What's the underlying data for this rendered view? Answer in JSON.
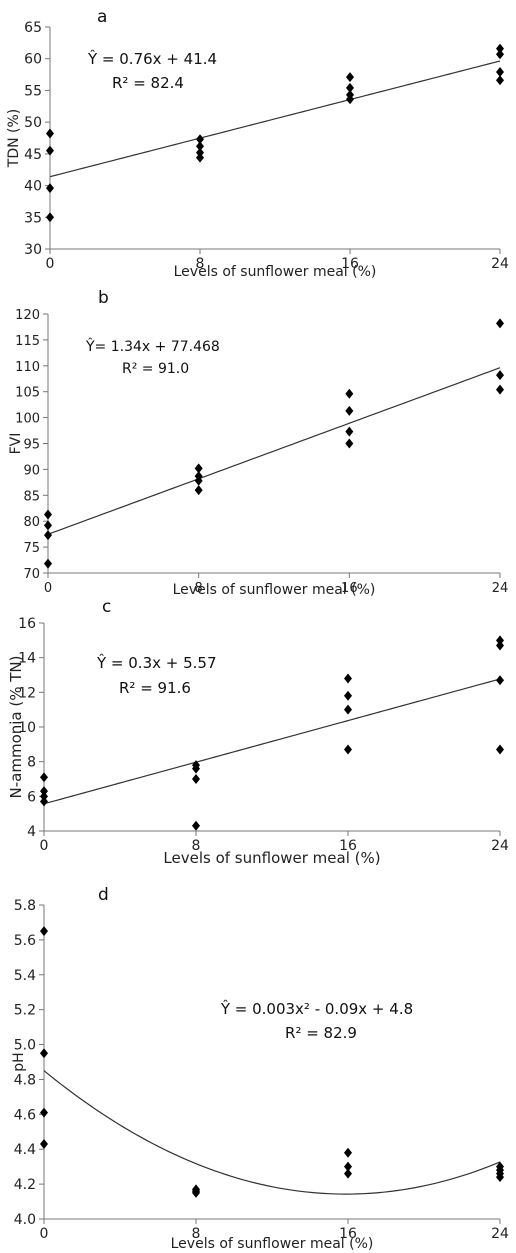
{
  "chart_data": [
    {
      "type": "scatter",
      "panel": "a",
      "xlabel": "Levels of sunflower meal (%)",
      "ylabel": "TDN (%)",
      "x_ticks": [
        0,
        8,
        16,
        24
      ],
      "ylim": [
        30,
        65
      ],
      "y_ticks": [
        30,
        35,
        40,
        45,
        50,
        55,
        60,
        65
      ],
      "points": [
        [
          0,
          35.0
        ],
        [
          0,
          39.6
        ],
        [
          0,
          45.5
        ],
        [
          0,
          48.2
        ],
        [
          8,
          44.4
        ],
        [
          8,
          45.2
        ],
        [
          8,
          46.2
        ],
        [
          8,
          47.3
        ],
        [
          16,
          53.6
        ],
        [
          16,
          54.3
        ],
        [
          16,
          55.4
        ],
        [
          16,
          57.1
        ],
        [
          24,
          56.6
        ],
        [
          24,
          57.9
        ],
        [
          24,
          60.7
        ],
        [
          24,
          61.6
        ]
      ],
      "fit": {
        "kind": "linear",
        "coef": [
          41.4,
          0.76
        ]
      },
      "equation": "Ŷ = 0.76x + 41.4",
      "r2": "R² = 82.4"
    },
    {
      "type": "scatter",
      "panel": "b",
      "xlabel": "Levels of sunflower meal (%)",
      "ylabel": "FVI",
      "x_ticks": [
        0,
        8,
        16,
        24
      ],
      "ylim": [
        70,
        120
      ],
      "y_ticks": [
        70,
        75,
        80,
        85,
        90,
        95,
        100,
        105,
        110,
        115,
        120
      ],
      "points": [
        [
          0,
          71.8
        ],
        [
          0,
          77.3
        ],
        [
          0,
          79.2
        ],
        [
          0,
          81.3
        ],
        [
          8,
          86.0
        ],
        [
          8,
          87.8
        ],
        [
          8,
          88.7
        ],
        [
          8,
          90.2
        ],
        [
          16,
          95.0
        ],
        [
          16,
          97.3
        ],
        [
          16,
          101.3
        ],
        [
          16,
          104.6
        ],
        [
          24,
          105.4
        ],
        [
          24,
          108.2
        ],
        [
          24,
          118.2
        ]
      ],
      "fit": {
        "kind": "linear",
        "coef": [
          77.468,
          1.34
        ]
      },
      "equation": "Ŷ= 1.34x + 77.468",
      "r2": "R² = 91.0"
    },
    {
      "type": "scatter",
      "panel": "c",
      "xlabel": "Levels of sunflower meal (%)",
      "ylabel": "N-ammonia  (% TN)",
      "x_ticks": [
        0,
        8,
        16,
        24
      ],
      "ylim": [
        4,
        16
      ],
      "y_ticks": [
        4,
        6,
        8,
        10,
        12,
        14,
        16
      ],
      "points": [
        [
          0,
          5.7
        ],
        [
          0,
          6.0
        ],
        [
          0,
          6.3
        ],
        [
          0,
          7.1
        ],
        [
          8,
          4.3
        ],
        [
          8,
          7.0
        ],
        [
          8,
          7.6
        ],
        [
          8,
          7.8
        ],
        [
          16,
          8.7
        ],
        [
          16,
          11.0
        ],
        [
          16,
          11.8
        ],
        [
          16,
          12.8
        ],
        [
          24,
          8.7
        ],
        [
          24,
          12.7
        ],
        [
          24,
          14.7
        ],
        [
          24,
          15.0
        ]
      ],
      "fit": {
        "kind": "linear",
        "coef": [
          5.57,
          0.3
        ]
      },
      "equation": "Ŷ = 0.3x + 5.57",
      "r2": "R² = 91.6"
    },
    {
      "type": "scatter",
      "panel": "d",
      "xlabel": "Levels of sunflower meal (%)",
      "ylabel": "pH",
      "x_ticks": [
        0,
        8,
        16,
        24
      ],
      "ylim": [
        4.0,
        5.8
      ],
      "y_ticks": [
        4.0,
        4.2,
        4.4,
        4.6,
        4.8,
        5.0,
        5.2,
        5.4,
        5.6,
        5.8
      ],
      "y_decimals": 1,
      "points": [
        [
          0,
          4.43
        ],
        [
          0,
          4.61
        ],
        [
          0,
          4.95
        ],
        [
          0,
          5.65
        ],
        [
          8,
          4.15
        ],
        [
          8,
          4.16
        ],
        [
          8,
          4.17
        ],
        [
          16,
          4.26
        ],
        [
          16,
          4.3
        ],
        [
          16,
          4.38
        ],
        [
          24,
          4.24
        ],
        [
          24,
          4.26
        ],
        [
          24,
          4.28
        ],
        [
          24,
          4.3
        ]
      ],
      "fit": {
        "kind": "quadratic",
        "coef": [
          4.85,
          -0.089,
          0.0028
        ]
      },
      "equation": "Ŷ = 0.003x² - 0.09x + 4.8",
      "r2": "R² = 82.9"
    }
  ]
}
